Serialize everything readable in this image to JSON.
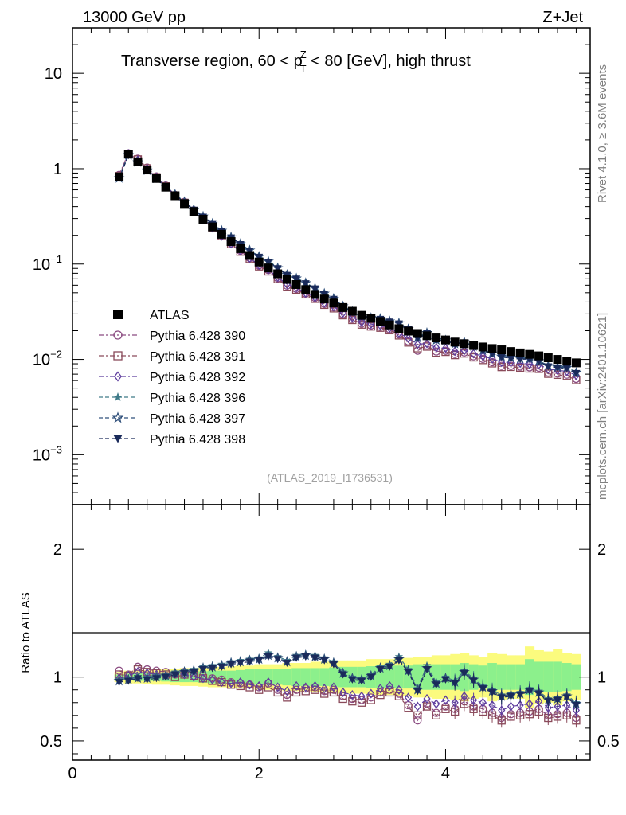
{
  "header": {
    "energy_label": "13000 GeV pp",
    "process_label": "Z+Jet",
    "title": "Transverse region, 60 < p",
    "title_sup": "Z",
    "title_sub": "T",
    "title_tail": " < 80 [GeV], high thrust",
    "side_label_top": "Rivet 4.1.0, ≥ 3.6M events",
    "side_label_bottom": "mcplots.cern.ch [arXiv:2401.10621]",
    "analysis_id": "(ATLAS_2019_I1736531)"
  },
  "chart_data": [
    {
      "type": "scatter",
      "panel": "main",
      "yscale": "log",
      "xlim": [
        0,
        5.55
      ],
      "ylim": [
        0.0003,
        30
      ],
      "y_ticks": [
        {
          "base": "10",
          "exp": "",
          "value": 10
        },
        {
          "base": "1",
          "exp": "",
          "value": 1
        },
        {
          "base": "10",
          "exp": "−1",
          "value": 0.1
        },
        {
          "base": "10",
          "exp": "−2",
          "value": 0.01
        },
        {
          "base": "10",
          "exp": "−3",
          "value": 0.001
        }
      ],
      "legend": {
        "position": "left",
        "entries": [
          {
            "label": "ATLAS",
            "marker": "square-filled",
            "color": "#000000"
          },
          {
            "label": "Pythia 6.428 390",
            "marker": "circle-open",
            "color": "#8a4a80"
          },
          {
            "label": "Pythia 6.428 391",
            "marker": "square-open",
            "color": "#8a4a5a"
          },
          {
            "label": "Pythia 6.428 392",
            "marker": "diamond-open",
            "color": "#5e3d9e"
          },
          {
            "label": "Pythia 6.428 396",
            "marker": "star-filled",
            "color": "#3f7a88"
          },
          {
            "label": "Pythia 6.428 397",
            "marker": "star-open",
            "color": "#2f4f7a"
          },
          {
            "label": "Pythia 6.428 398",
            "marker": "triangle-down-filled",
            "color": "#1a2a5a"
          }
        ]
      },
      "x": [
        0.5,
        0.6,
        0.7,
        0.8,
        0.9,
        1.0,
        1.1,
        1.2,
        1.3,
        1.4,
        1.5,
        1.6,
        1.7,
        1.8,
        1.9,
        2.0,
        2.1,
        2.2,
        2.3,
        2.4,
        2.5,
        2.6,
        2.7,
        2.8,
        2.9,
        3.0,
        3.1,
        3.2,
        3.3,
        3.4,
        3.5,
        3.6,
        3.7,
        3.8,
        3.9,
        4.0,
        4.1,
        4.2,
        4.3,
        4.4,
        4.5,
        4.6,
        4.7,
        4.8,
        4.9,
        5.0,
        5.1,
        5.2,
        5.3,
        5.4
      ],
      "data_values": [
        0.82,
        1.42,
        1.18,
        0.97,
        0.79,
        0.64,
        0.52,
        0.43,
        0.355,
        0.295,
        0.245,
        0.205,
        0.172,
        0.145,
        0.123,
        0.105,
        0.091,
        0.079,
        0.069,
        0.061,
        0.054,
        0.048,
        0.043,
        0.039,
        0.035,
        0.032,
        0.029,
        0.027,
        0.025,
        0.023,
        0.021,
        0.0198,
        0.0187,
        0.0177,
        0.0168,
        0.016,
        0.0152,
        0.0146,
        0.014,
        0.0135,
        0.013,
        0.0126,
        0.0121,
        0.0117,
        0.0113,
        0.0109,
        0.0104,
        0.01,
        0.0096,
        0.0092
      ],
      "ratio_a": [
        1.05,
        1.02,
        1.08,
        1.06,
        1.05,
        1.04,
        1.02,
        1.04,
        1.03,
        1.01,
        0.99,
        0.98,
        0.96,
        0.95,
        0.94,
        0.92,
        0.95,
        0.9,
        0.86,
        0.9,
        0.91,
        0.92,
        0.89,
        0.9,
        0.85,
        0.83,
        0.82,
        0.84,
        0.88,
        0.9,
        0.87,
        0.78,
        0.66,
        0.79,
        0.72,
        0.77,
        0.75,
        0.81,
        0.77,
        0.75,
        0.72,
        0.68,
        0.71,
        0.72,
        0.73,
        0.75,
        0.7,
        0.71,
        0.72,
        0.68
      ],
      "ratio_b": [
        1.02,
        1.01,
        1.06,
        1.04,
        1.03,
        1.02,
        1.0,
        1.02,
        1.01,
        0.99,
        0.97,
        0.96,
        0.94,
        0.93,
        0.92,
        0.9,
        0.92,
        0.88,
        0.84,
        0.88,
        0.89,
        0.9,
        0.87,
        0.88,
        0.83,
        0.81,
        0.8,
        0.82,
        0.86,
        0.88,
        0.85,
        0.76,
        0.7,
        0.77,
        0.7,
        0.75,
        0.73,
        0.79,
        0.75,
        0.73,
        0.7,
        0.66,
        0.69,
        0.7,
        0.71,
        0.73,
        0.68,
        0.69,
        0.7,
        0.66
      ],
      "ratio_c": [
        0.99,
        1.01,
        1.04,
        1.03,
        1.02,
        1.01,
        1.03,
        1.02,
        1.0,
        0.99,
        0.98,
        0.96,
        0.95,
        0.96,
        0.94,
        0.93,
        0.96,
        0.92,
        0.89,
        0.93,
        0.92,
        0.93,
        0.91,
        0.92,
        0.88,
        0.86,
        0.85,
        0.87,
        0.91,
        0.93,
        0.9,
        0.84,
        0.77,
        0.83,
        0.79,
        0.82,
        0.8,
        0.85,
        0.82,
        0.8,
        0.78,
        0.74,
        0.77,
        0.78,
        0.79,
        0.81,
        0.76,
        0.77,
        0.78,
        0.74
      ],
      "ratio_d": [
        0.98,
        0.99,
        1.0,
        1.0,
        1.01,
        1.02,
        1.04,
        1.05,
        1.06,
        1.08,
        1.09,
        1.1,
        1.12,
        1.13,
        1.14,
        1.15,
        1.19,
        1.16,
        1.13,
        1.17,
        1.18,
        1.17,
        1.15,
        1.12,
        1.04,
        1.0,
        0.99,
        1.02,
        1.08,
        1.1,
        1.16,
        1.06,
        0.91,
        1.09,
        0.96,
        1.0,
        0.97,
        1.05,
        0.99,
        0.93,
        0.9,
        0.86,
        0.87,
        0.88,
        0.91,
        0.89,
        0.83,
        0.84,
        0.86,
        0.8
      ],
      "ratio_e": [
        0.97,
        0.98,
        0.99,
        0.99,
        1.0,
        1.01,
        1.03,
        1.04,
        1.05,
        1.07,
        1.08,
        1.09,
        1.11,
        1.12,
        1.13,
        1.14,
        1.17,
        1.15,
        1.12,
        1.16,
        1.17,
        1.16,
        1.14,
        1.11,
        1.03,
        0.99,
        0.98,
        1.01,
        1.07,
        1.09,
        1.14,
        1.05,
        0.9,
        1.07,
        0.95,
        0.99,
        0.96,
        1.04,
        0.98,
        0.92,
        0.89,
        0.85,
        0.86,
        0.87,
        0.9,
        0.88,
        0.82,
        0.83,
        0.85,
        0.79
      ],
      "ratio_f": [
        0.96,
        0.97,
        0.99,
        0.98,
        0.99,
        1.0,
        1.02,
        1.03,
        1.04,
        1.06,
        1.07,
        1.08,
        1.1,
        1.11,
        1.12,
        1.13,
        1.16,
        1.14,
        1.11,
        1.15,
        1.16,
        1.15,
        1.13,
        1.1,
        1.02,
        0.98,
        0.97,
        1.0,
        1.06,
        1.08,
        1.13,
        1.04,
        0.89,
        1.06,
        0.94,
        0.98,
        0.95,
        1.03,
        0.97,
        0.91,
        0.88,
        0.84,
        0.85,
        0.86,
        0.89,
        0.87,
        0.81,
        0.82,
        0.84,
        0.78
      ],
      "mc_scale": [
        1.05,
        1.02,
        1.08,
        1.06,
        1.05,
        1.04,
        1.02,
        1.04,
        1.03,
        1.01,
        0.99,
        0.98,
        0.96,
        0.95,
        0.94,
        0.92,
        0.95,
        0.9,
        0.86,
        0.9,
        0.91,
        0.92,
        0.89,
        0.9,
        0.85,
        0.83,
        0.82,
        0.84,
        0.88,
        0.9,
        0.87,
        0.78,
        0.66,
        0.79,
        0.72,
        0.77,
        0.75,
        0.81,
        0.77,
        0.75,
        0.72,
        0.68,
        0.71,
        0.72,
        0.73,
        0.75,
        0.7,
        0.71,
        0.72,
        0.68
      ]
    },
    {
      "type": "line",
      "panel": "ratio",
      "xlim": [
        0,
        5.55
      ],
      "ylim": [
        0.35,
        2.35
      ],
      "ylabel": "Ratio to ATLAS",
      "y_ticks": [
        "0.5",
        "1",
        "2"
      ],
      "x_ticks": [
        "0",
        "2",
        "4"
      ],
      "band_green": [
        0.02,
        0.025,
        0.03,
        0.03,
        0.03,
        0.035,
        0.04,
        0.04,
        0.04,
        0.045,
        0.05,
        0.05,
        0.05,
        0.055,
        0.06,
        0.06,
        0.06,
        0.06,
        0.065,
        0.07,
        0.07,
        0.07,
        0.07,
        0.075,
        0.08,
        0.08,
        0.08,
        0.085,
        0.09,
        0.09,
        0.09,
        0.09,
        0.1,
        0.1,
        0.1,
        0.1,
        0.1,
        0.11,
        0.1,
        0.09,
        0.11,
        0.1,
        0.1,
        0.1,
        0.14,
        0.12,
        0.12,
        0.12,
        0.11,
        0.1
      ],
      "band_yellow": [
        0.04,
        0.05,
        0.05,
        0.055,
        0.06,
        0.06,
        0.065,
        0.07,
        0.07,
        0.075,
        0.08,
        0.08,
        0.085,
        0.09,
        0.09,
        0.1,
        0.1,
        0.1,
        0.11,
        0.11,
        0.11,
        0.12,
        0.12,
        0.12,
        0.13,
        0.13,
        0.13,
        0.14,
        0.14,
        0.14,
        0.15,
        0.15,
        0.16,
        0.16,
        0.17,
        0.17,
        0.18,
        0.19,
        0.17,
        0.16,
        0.19,
        0.18,
        0.17,
        0.17,
        0.24,
        0.21,
        0.2,
        0.22,
        0.19,
        0.18
      ]
    }
  ],
  "colors": {
    "data": "#000000",
    "band_yellow": "#fbfb7e",
    "band_green": "#8cf08c",
    "axis": "#000000"
  }
}
